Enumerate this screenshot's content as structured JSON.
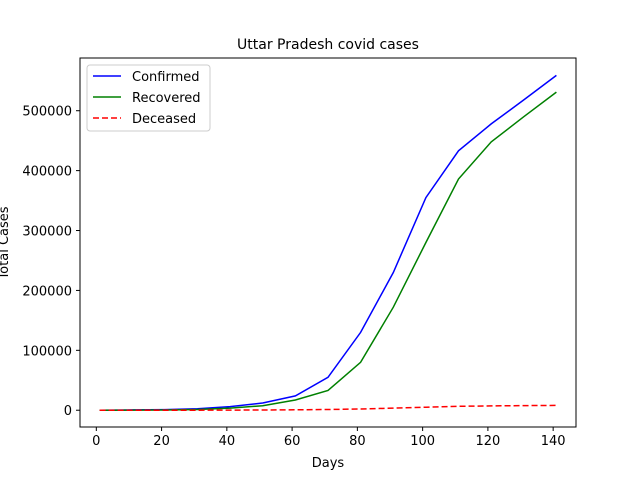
{
  "chart_data": {
    "type": "line",
    "title": "Uttar Pradesh covid cases",
    "xlabel": "Days",
    "ylabel": "Total Cases",
    "xlim": [
      -5,
      147
    ],
    "ylim": [
      -28000,
      588000
    ],
    "xticks": [
      0,
      20,
      40,
      60,
      80,
      100,
      120,
      140
    ],
    "yticks": [
      0,
      100000,
      200000,
      300000,
      400000,
      500000
    ],
    "grid": false,
    "legend_position": "top-left",
    "x": [
      1,
      11,
      21,
      31,
      41,
      51,
      61,
      71,
      81,
      91,
      101,
      111,
      121,
      131,
      141
    ],
    "series": [
      {
        "name": "Confirmed",
        "color": "#0000ff",
        "style": "solid",
        "values": [
          100,
          500,
          1000,
          2500,
          6000,
          12000,
          24000,
          55000,
          130000,
          230000,
          355000,
          433000,
          478000,
          518000,
          559000
        ]
      },
      {
        "name": "Recovered",
        "color": "#008000",
        "style": "solid",
        "values": [
          50,
          200,
          400,
          1200,
          3500,
          7500,
          17000,
          33000,
          80000,
          172000,
          280000,
          386000,
          448000,
          490000,
          531000
        ]
      },
      {
        "name": "Deceased",
        "color": "#ff0000",
        "style": "dashed",
        "values": [
          0,
          20,
          50,
          100,
          200,
          400,
          700,
          1200,
          2100,
          3600,
          5000,
          6500,
          7200,
          7800,
          8000
        ]
      }
    ]
  }
}
